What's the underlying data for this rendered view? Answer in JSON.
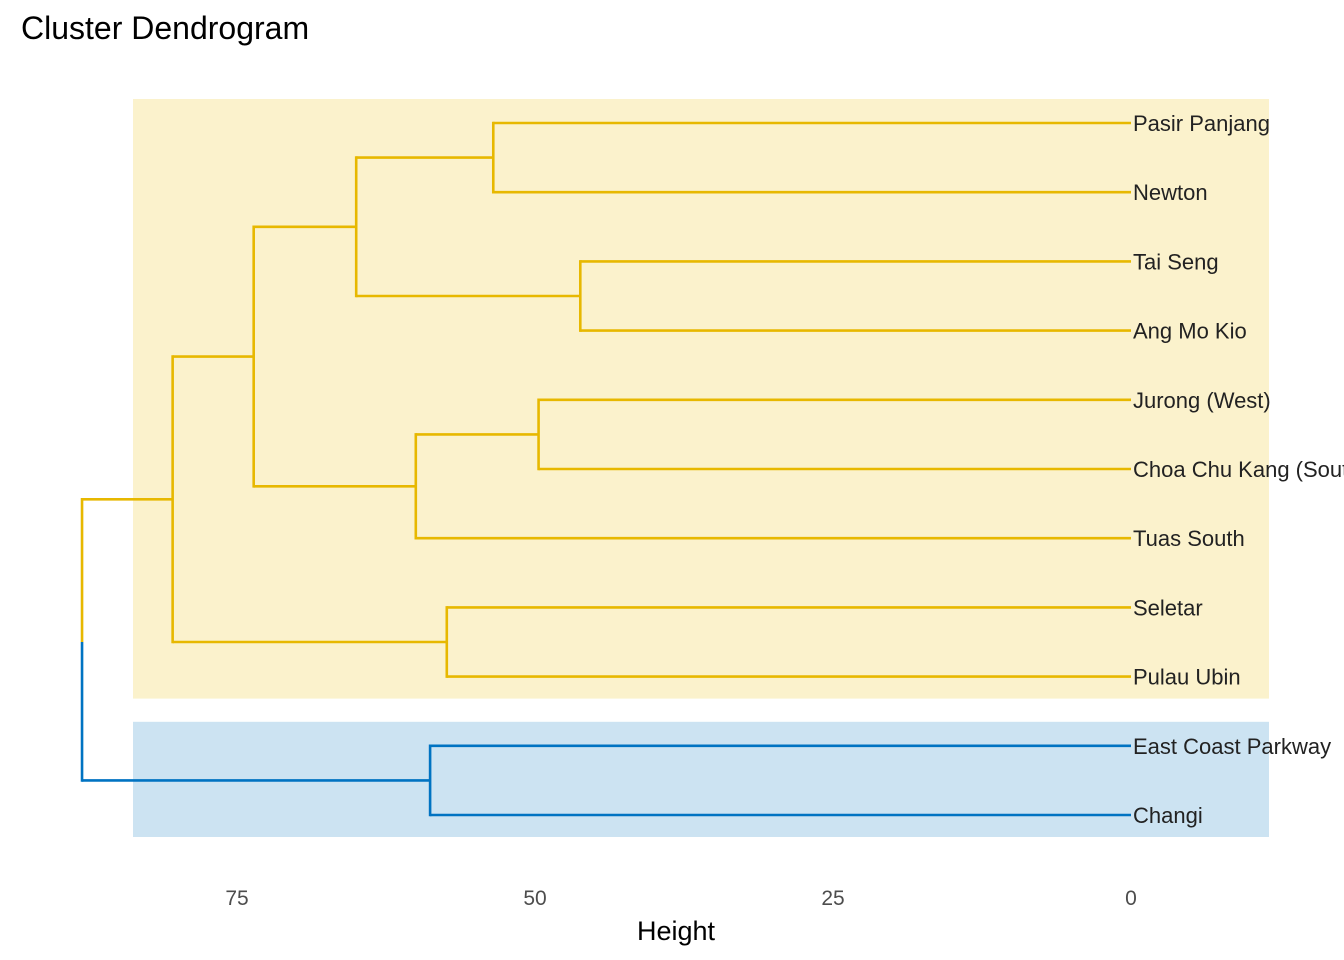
{
  "chart_data": {
    "type": "dendrogram",
    "title": "Cluster Dendrogram",
    "xlabel": "Height",
    "ylabel": "",
    "orientation": "horizontal",
    "x_reversed": true,
    "xticks": [
      75,
      50,
      25,
      0
    ],
    "xlim": [
      88,
      0
    ],
    "grid": false,
    "leaves": [
      "Pasir Panjang",
      "Newton",
      "Tai Seng",
      "Ang Mo Kio",
      "Jurong (West)",
      "Choa Chu Kang (South)",
      "Tuas South",
      "Seletar",
      "Pulau Ubin",
      "East Coast Parkway",
      "Changi"
    ],
    "merges": [
      {
        "left": "Pasir Panjang",
        "right": "Newton",
        "height": 53.5
      },
      {
        "left": "Tai Seng",
        "right": "Ang Mo Kio",
        "height": 46.2
      },
      {
        "left": "Jurong (West)",
        "right": "Choa Chu Kang (South)",
        "height": 49.7
      },
      {
        "left": "Seletar",
        "right": "Pulau Ubin",
        "height": 57.4
      },
      {
        "left": "East Coast Parkway",
        "right": "Changi",
        "height": 58.8
      },
      {
        "left": "M1",
        "right": "M2",
        "height": 65.0
      },
      {
        "left": "M3",
        "right": "Tuas South",
        "height": 60.0
      },
      {
        "left": "M6",
        "right": "M7",
        "height": 73.6
      },
      {
        "left": "M8",
        "right": "M4",
        "height": 80.4
      },
      {
        "left": "M9",
        "right": "M5",
        "height": 88.0
      }
    ],
    "clusters": [
      {
        "id": 1,
        "members": [
          "Pasir Panjang",
          "Newton",
          "Tai Seng",
          "Ang Mo Kio",
          "Jurong (West)",
          "Choa Chu Kang (South)",
          "Tuas South",
          "Seletar",
          "Pulau Ubin"
        ],
        "color": "#E7B800",
        "fill": "#FBF2CC"
      },
      {
        "id": 2,
        "members": [
          "East Coast Parkway",
          "Changi"
        ],
        "color": "#0073C2",
        "fill": "#CCE3F2"
      }
    ]
  }
}
